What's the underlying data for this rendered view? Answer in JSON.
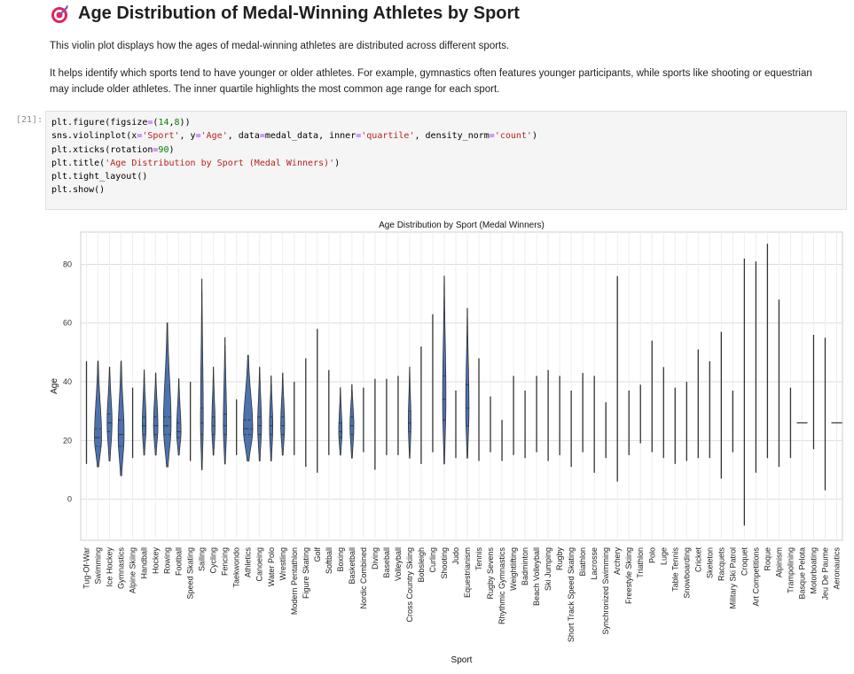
{
  "header": {
    "title": "Age Distribution of Medal-Winning Athletes by Sport",
    "icon": "dart-target-icon"
  },
  "description": {
    "p1": "This violin plot displays how the ages of medal-winning athletes are distributed across different sports.",
    "p2_line1": "It helps identify which sports tend to have younger or older athletes. For example, gymnastics often features younger participants, while sports like shooting or equestrian",
    "p2_line2": "may include older athletes. The inner quartile highlights the most common age range for each sport."
  },
  "cell": {
    "prompt": "[21]:",
    "code": [
      [
        [
          "plt.figure(figsize",
          ""
        ],
        [
          "=",
          "eq"
        ],
        [
          "(",
          ""
        ],
        [
          "14",
          "num"
        ],
        [
          ",",
          ""
        ],
        [
          "8",
          "num"
        ],
        [
          "))",
          ""
        ]
      ],
      [
        [
          "sns.violinplot(x",
          ""
        ],
        [
          "=",
          "eq"
        ],
        [
          "'Sport'",
          "str"
        ],
        [
          ", y",
          ""
        ],
        [
          "=",
          "eq"
        ],
        [
          "'Age'",
          "str"
        ],
        [
          ", data",
          ""
        ],
        [
          "=",
          "eq"
        ],
        [
          "medal_data, inner",
          ""
        ],
        [
          "=",
          "eq"
        ],
        [
          "'quartile'",
          "str"
        ],
        [
          ", density_norm",
          ""
        ],
        [
          "=",
          "eq"
        ],
        [
          "'count'",
          "str"
        ],
        [
          ")",
          ""
        ]
      ],
      [
        [
          "plt.xticks(rotation",
          ""
        ],
        [
          "=",
          "eq"
        ],
        [
          "90",
          "num"
        ],
        [
          ")",
          ""
        ]
      ],
      [
        [
          "plt.title(",
          ""
        ],
        [
          "'Age Distribution by Sport (Medal Winners)'",
          "str"
        ],
        [
          ")",
          ""
        ]
      ],
      [
        [
          "plt.tight_layout()",
          ""
        ]
      ],
      [
        [
          "plt.show()",
          ""
        ]
      ]
    ]
  },
  "chart_data": {
    "type": "violin",
    "title": "Age Distribution by Sport (Medal Winners)",
    "xlabel": "Sport",
    "ylabel": "Age",
    "ylim": [
      -14,
      91
    ],
    "yticks": [
      0,
      20,
      40,
      60,
      80
    ],
    "grid": true,
    "fill_color": "#4c72b0",
    "line_color": "#333333",
    "categories": [
      "Tug-Of-War",
      "Swimming",
      "Ice Hockey",
      "Gymnastics",
      "Alpine Skiing",
      "Handball",
      "Hockey",
      "Rowing",
      "Football",
      "Speed Skating",
      "Sailing",
      "Cycling",
      "Fencing",
      "Taekwondo",
      "Athletics",
      "Canoeing",
      "Water Polo",
      "Wrestling",
      "Modern Pentathlon",
      "Figure Skating",
      "Golf",
      "Softball",
      "Boxing",
      "Basketball",
      "Nordic Combined",
      "Diving",
      "Baseball",
      "Volleyball",
      "Cross Country Skiing",
      "Bobsleigh",
      "Curling",
      "Shooting",
      "Judo",
      "Equestrianism",
      "Tennis",
      "Rugby Sevens",
      "Rhythmic Gymnastics",
      "Weightlifting",
      "Badminton",
      "Beach Volleyball",
      "Ski Jumping",
      "Rugby",
      "Short Track Speed Skating",
      "Biathlon",
      "Lacrosse",
      "Synchronized Swimming",
      "Archery",
      "Freestyle Skiing",
      "Triathlon",
      "Polo",
      "Luge",
      "Table Tennis",
      "Snowboarding",
      "Cricket",
      "Skeleton",
      "Racquets",
      "Military Ski Patrol",
      "Croquet",
      "Art Competitions",
      "Roque",
      "Alpinism",
      "Trampolining",
      "Basque Pelota",
      "Motorboating",
      "Jeu De Paume",
      "Aeronautics"
    ],
    "series": [
      {
        "min": 12,
        "max": 47,
        "q1": 22,
        "median": 27,
        "q3": 33,
        "width": 0.1
      },
      {
        "min": 11,
        "max": 47,
        "q1": 18,
        "median": 21,
        "q3": 24,
        "width": 0.65
      },
      {
        "min": 13,
        "max": 45,
        "q1": 23,
        "median": 26,
        "q3": 29,
        "width": 0.45
      },
      {
        "min": 8,
        "max": 47,
        "q1": 18,
        "median": 22,
        "q3": 27,
        "width": 0.55
      },
      {
        "min": 14,
        "max": 38,
        "q1": 20,
        "median": 23,
        "q3": 26,
        "width": 0.15
      },
      {
        "min": 15,
        "max": 44,
        "q1": 22,
        "median": 25,
        "q3": 28,
        "width": 0.35
      },
      {
        "min": 15,
        "max": 43,
        "q1": 22,
        "median": 25,
        "q3": 28,
        "width": 0.4
      },
      {
        "min": 11,
        "max": 60,
        "q1": 22,
        "median": 25,
        "q3": 28,
        "width": 0.7
      },
      {
        "min": 15,
        "max": 41,
        "q1": 21,
        "median": 23,
        "q3": 26,
        "width": 0.4
      },
      {
        "min": 13,
        "max": 40,
        "q1": 20,
        "median": 23,
        "q3": 26,
        "width": 0.2
      },
      {
        "min": 10,
        "max": 75,
        "q1": 22,
        "median": 26,
        "q3": 31,
        "width": 0.25
      },
      {
        "min": 15,
        "max": 45,
        "q1": 22,
        "median": 25,
        "q3": 28,
        "width": 0.3
      },
      {
        "min": 12,
        "max": 55,
        "q1": 22,
        "median": 25,
        "q3": 29,
        "width": 0.3
      },
      {
        "min": 15,
        "max": 34,
        "q1": 20,
        "median": 23,
        "q3": 26,
        "width": 0.12
      },
      {
        "min": 13,
        "max": 49,
        "q1": 22,
        "median": 24,
        "q3": 27,
        "width": 0.85
      },
      {
        "min": 13,
        "max": 45,
        "q1": 22,
        "median": 25,
        "q3": 28,
        "width": 0.35
      },
      {
        "min": 13,
        "max": 42,
        "q1": 22,
        "median": 25,
        "q3": 28,
        "width": 0.3
      },
      {
        "min": 15,
        "max": 43,
        "q1": 22,
        "median": 25,
        "q3": 28,
        "width": 0.35
      },
      {
        "min": 15,
        "max": 40,
        "q1": 22,
        "median": 25,
        "q3": 28,
        "width": 0.08
      },
      {
        "min": 11,
        "max": 48,
        "q1": 19,
        "median": 22,
        "q3": 26,
        "width": 0.1
      },
      {
        "min": 9,
        "max": 58,
        "q1": 25,
        "median": 30,
        "q3": 38,
        "width": 0.05
      },
      {
        "min": 15,
        "max": 44,
        "q1": 22,
        "median": 25,
        "q3": 28,
        "width": 0.08
      },
      {
        "min": 15,
        "max": 38,
        "q1": 21,
        "median": 23,
        "q3": 26,
        "width": 0.3
      },
      {
        "min": 14,
        "max": 39,
        "q1": 22,
        "median": 25,
        "q3": 28,
        "width": 0.35
      },
      {
        "min": 16,
        "max": 38,
        "q1": 21,
        "median": 24,
        "q3": 27,
        "width": 0.06
      },
      {
        "min": 10,
        "max": 41,
        "q1": 18,
        "median": 21,
        "q3": 24,
        "width": 0.08
      },
      {
        "min": 15,
        "max": 41,
        "q1": 22,
        "median": 25,
        "q3": 28,
        "width": 0.08
      },
      {
        "min": 15,
        "max": 42,
        "q1": 22,
        "median": 25,
        "q3": 28,
        "width": 0.2
      },
      {
        "min": 14,
        "max": 45,
        "q1": 23,
        "median": 26,
        "q3": 30,
        "width": 0.25
      },
      {
        "min": 12,
        "max": 52,
        "q1": 24,
        "median": 28,
        "q3": 32,
        "width": 0.12
      },
      {
        "min": 16,
        "max": 63,
        "q1": 24,
        "median": 30,
        "q3": 40,
        "width": 0.06
      },
      {
        "min": 12,
        "max": 76,
        "q1": 27,
        "median": 34,
        "q3": 42,
        "width": 0.3
      },
      {
        "min": 14,
        "max": 37,
        "q1": 21,
        "median": 24,
        "q3": 27,
        "width": 0.1
      },
      {
        "min": 14,
        "max": 65,
        "q1": 25,
        "median": 31,
        "q3": 39,
        "width": 0.3
      },
      {
        "min": 13,
        "max": 48,
        "q1": 21,
        "median": 24,
        "q3": 28,
        "width": 0.1
      },
      {
        "min": 16,
        "max": 35,
        "q1": 21,
        "median": 24,
        "q3": 27,
        "width": 0.06
      },
      {
        "min": 13,
        "max": 27,
        "q1": 17,
        "median": 19,
        "q3": 21,
        "width": 0.06
      },
      {
        "min": 15,
        "max": 42,
        "q1": 21,
        "median": 24,
        "q3": 27,
        "width": 0.12
      },
      {
        "min": 14,
        "max": 37,
        "q1": 21,
        "median": 24,
        "q3": 27,
        "width": 0.06
      },
      {
        "min": 16,
        "max": 42,
        "q1": 23,
        "median": 27,
        "q3": 30,
        "width": 0.06
      },
      {
        "min": 13,
        "max": 44,
        "q1": 20,
        "median": 22,
        "q3": 25,
        "width": 0.06
      },
      {
        "min": 15,
        "max": 42,
        "q1": 22,
        "median": 25,
        "q3": 28,
        "width": 0.06
      },
      {
        "min": 11,
        "max": 37,
        "q1": 19,
        "median": 22,
        "q3": 25,
        "width": 0.05
      },
      {
        "min": 16,
        "max": 43,
        "q1": 23,
        "median": 26,
        "q3": 29,
        "width": 0.06
      },
      {
        "min": 9,
        "max": 42,
        "q1": 19,
        "median": 23,
        "q3": 27,
        "width": 0.06
      },
      {
        "min": 14,
        "max": 33,
        "q1": 18,
        "median": 21,
        "q3": 24,
        "width": 0.06
      },
      {
        "min": 6,
        "max": 76,
        "q1": 22,
        "median": 28,
        "q3": 36,
        "width": 0.05
      },
      {
        "min": 15,
        "max": 37,
        "q1": 20,
        "median": 23,
        "q3": 26,
        "width": 0.06
      },
      {
        "min": 19,
        "max": 39,
        "q1": 23,
        "median": 26,
        "q3": 29,
        "width": 0.04
      },
      {
        "min": 16,
        "max": 54,
        "q1": 27,
        "median": 33,
        "q3": 40,
        "width": 0.04
      },
      {
        "min": 14,
        "max": 45,
        "q1": 21,
        "median": 25,
        "q3": 29,
        "width": 0.04
      },
      {
        "min": 12,
        "max": 38,
        "q1": 21,
        "median": 25,
        "q3": 29,
        "width": 0.04
      },
      {
        "min": 13,
        "max": 40,
        "q1": 19,
        "median": 22,
        "q3": 25,
        "width": 0.04
      },
      {
        "min": 14,
        "max": 51,
        "q1": 24,
        "median": 28,
        "q3": 32,
        "width": 0.04
      },
      {
        "min": 14,
        "max": 47,
        "q1": 24,
        "median": 28,
        "q3": 32,
        "width": 0.04
      },
      {
        "min": 7,
        "max": 57,
        "q1": 25,
        "median": 31,
        "q3": 38,
        "width": 0.04
      },
      {
        "min": 16,
        "max": 37,
        "q1": 24,
        "median": 28,
        "q3": 32,
        "width": 0.04
      },
      {
        "min": -9,
        "max": 82,
        "q1": 30,
        "median": 40,
        "q3": 55,
        "width": 0.04
      },
      {
        "min": 9,
        "max": 81,
        "q1": 35,
        "median": 44,
        "q3": 54,
        "width": 0.04
      },
      {
        "min": 14,
        "max": 87,
        "q1": 40,
        "median": 55,
        "q3": 65,
        "width": 0.04
      },
      {
        "min": 11,
        "max": 68,
        "q1": 30,
        "median": 38,
        "q3": 45,
        "width": 0.04
      },
      {
        "min": 14,
        "max": 38,
        "q1": 21,
        "median": 24,
        "q3": 28,
        "width": 0.04
      },
      {
        "min": 26,
        "max": 26,
        "q1": 26,
        "median": 26,
        "q3": 26,
        "width": 0.0
      },
      {
        "min": 17,
        "max": 56,
        "q1": 28,
        "median": 35,
        "q3": 44,
        "width": 0.04
      },
      {
        "min": 3,
        "max": 55,
        "q1": 24,
        "median": 31,
        "q3": 40,
        "width": 0.04
      },
      {
        "min": 26,
        "max": 26,
        "q1": 26,
        "median": 26,
        "q3": 26,
        "width": 0.0
      }
    ]
  }
}
